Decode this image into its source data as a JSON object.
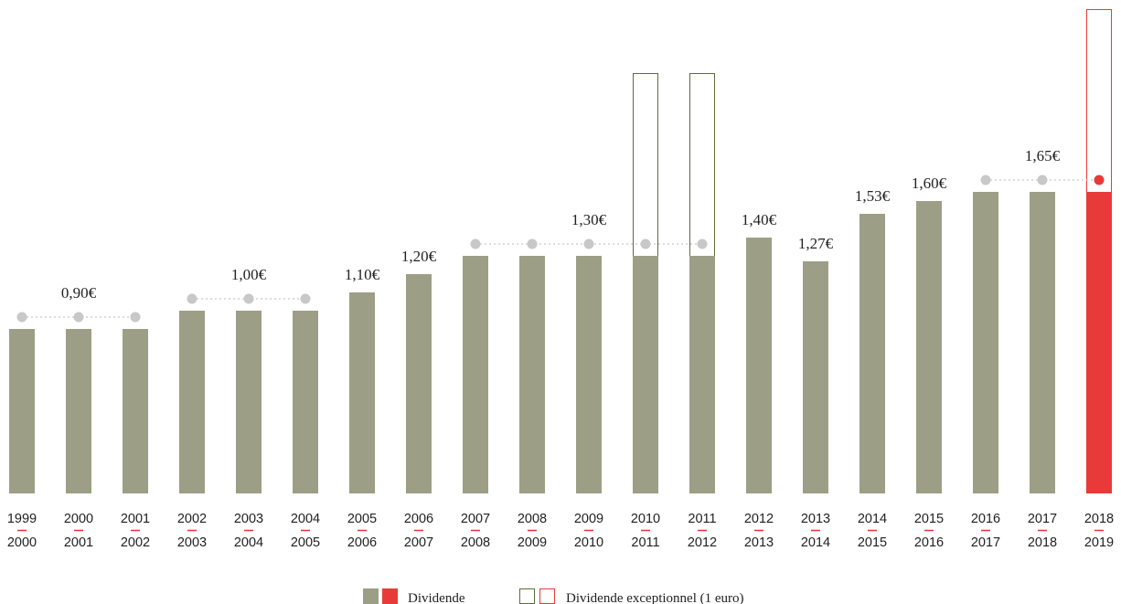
{
  "chart_data": {
    "type": "bar",
    "categories": [
      {
        "top": "1999",
        "bottom": "2000"
      },
      {
        "top": "2000",
        "bottom": "2001"
      },
      {
        "top": "2001",
        "bottom": "2002"
      },
      {
        "top": "2002",
        "bottom": "2003"
      },
      {
        "top": "2003",
        "bottom": "2004"
      },
      {
        "top": "2004",
        "bottom": "2005"
      },
      {
        "top": "2005",
        "bottom": "2006"
      },
      {
        "top": "2006",
        "bottom": "2007"
      },
      {
        "top": "2007",
        "bottom": "2008"
      },
      {
        "top": "2008",
        "bottom": "2009"
      },
      {
        "top": "2009",
        "bottom": "2010"
      },
      {
        "top": "2010",
        "bottom": "2011"
      },
      {
        "top": "2011",
        "bottom": "2012"
      },
      {
        "top": "2012",
        "bottom": "2013"
      },
      {
        "top": "2013",
        "bottom": "2014"
      },
      {
        "top": "2014",
        "bottom": "2015"
      },
      {
        "top": "2015",
        "bottom": "2016"
      },
      {
        "top": "2016",
        "bottom": "2017"
      },
      {
        "top": "2017",
        "bottom": "2018"
      },
      {
        "top": "2018",
        "bottom": "2019"
      }
    ],
    "series": [
      {
        "name": "Dividende",
        "values": [
          0.9,
          0.9,
          0.9,
          1.0,
          1.0,
          1.0,
          1.1,
          1.2,
          1.3,
          1.3,
          1.3,
          1.3,
          1.3,
          1.4,
          1.27,
          1.53,
          1.6,
          1.65,
          1.65,
          1.65
        ]
      },
      {
        "name": "Dividende exceptionnel (1 euro)",
        "values": [
          0,
          0,
          0,
          0,
          0,
          0,
          0,
          0,
          0,
          0,
          0,
          1,
          1,
          0,
          0,
          0,
          0,
          0,
          0,
          1
        ]
      }
    ],
    "highlight_index": 19,
    "value_labels": [
      {
        "text": "0,90€",
        "index": 1
      },
      {
        "text": "1,00€",
        "index": 4
      },
      {
        "text": "1,10€",
        "index": 6
      },
      {
        "text": "1,20€",
        "index": 7
      },
      {
        "text": "1,30€",
        "index": 10
      },
      {
        "text": "1,40€",
        "index": 13
      },
      {
        "text": "1,27€",
        "index": 14
      },
      {
        "text": "1,53€",
        "index": 15
      },
      {
        "text": "1,60€",
        "index": 16
      },
      {
        "text": "1,65€",
        "index": 18
      }
    ],
    "plateaus": [
      {
        "from": 0,
        "to": 2,
        "value": 0.9
      },
      {
        "from": 3,
        "to": 5,
        "value": 1.0
      },
      {
        "from": 8,
        "to": 12,
        "value": 1.3
      },
      {
        "from": 17,
        "to": 19,
        "value": 1.65
      }
    ],
    "ylim": [
      0,
      2.65
    ],
    "grid": false,
    "legend_position": "bottom-center",
    "colors": {
      "bar": "#9c9f86",
      "highlight": "#e83b39",
      "exceptional_border": "#5f6b3e",
      "exceptional_border_highlight": "#e83b39",
      "dot": "#c8c8c8",
      "dot_highlight": "#e83b39",
      "dash": "#e2342f"
    },
    "legend": {
      "dividende": "Dividende",
      "exceptionnel": "Dividende exceptionnel (1 euro)"
    }
  }
}
